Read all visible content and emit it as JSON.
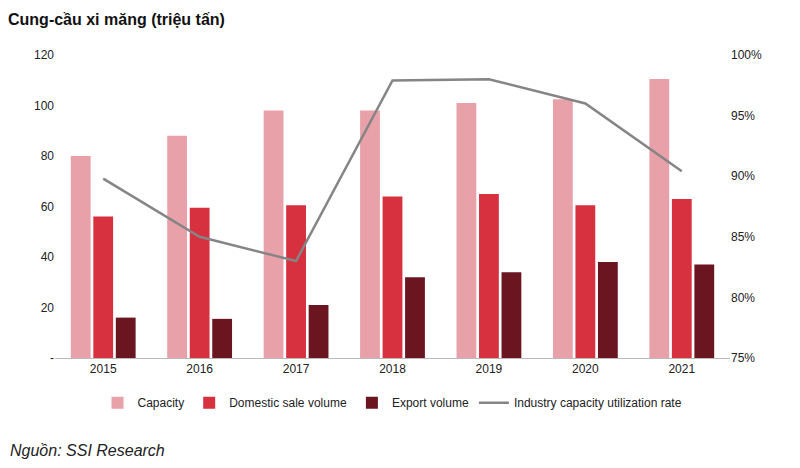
{
  "chart_data": {
    "type": "bar",
    "title": "Cung-cầu xi măng (triệu tấn)",
    "annotations": [
      "Nguồn: SSI Research"
    ],
    "categories": [
      "2015",
      "2016",
      "2017",
      "2018",
      "2019",
      "2020",
      "2021"
    ],
    "series": [
      {
        "name": "Capacity",
        "color": "#e8a0a9",
        "type": "bar",
        "values": [
          80,
          88,
          98,
          98,
          101,
          102.5,
          110.5
        ]
      },
      {
        "name": "Domestic sale volume",
        "color": "#d7303f",
        "type": "bar",
        "values": [
          56,
          59.5,
          60.5,
          64,
          65,
          60.5,
          63
        ]
      },
      {
        "name": "Export volume",
        "color": "#6a1520",
        "type": "bar",
        "values": [
          16,
          15.5,
          21,
          32,
          34,
          38,
          37
        ]
      },
      {
        "name": "Industry capacity utilization rate",
        "color": "#858585",
        "type": "line",
        "axis": "y2",
        "values": [
          89.8,
          85,
          83,
          97.9,
          98,
          96,
          90.4
        ]
      }
    ],
    "ylim": [
      0,
      120
    ],
    "yticks": [
      {
        "value": 0,
        "label": "-"
      },
      20,
      40,
      60,
      80,
      100,
      120
    ],
    "y2lim": [
      75,
      100
    ],
    "y2ticks": [
      {
        "value": 75,
        "label": "75%"
      },
      {
        "value": 80,
        "label": "80%"
      },
      {
        "value": 85,
        "label": "85%"
      },
      {
        "value": 90,
        "label": "90%"
      },
      {
        "value": 95,
        "label": "95%"
      },
      {
        "value": 100,
        "label": "100%"
      }
    ],
    "grid": false,
    "legend": "bottom"
  }
}
